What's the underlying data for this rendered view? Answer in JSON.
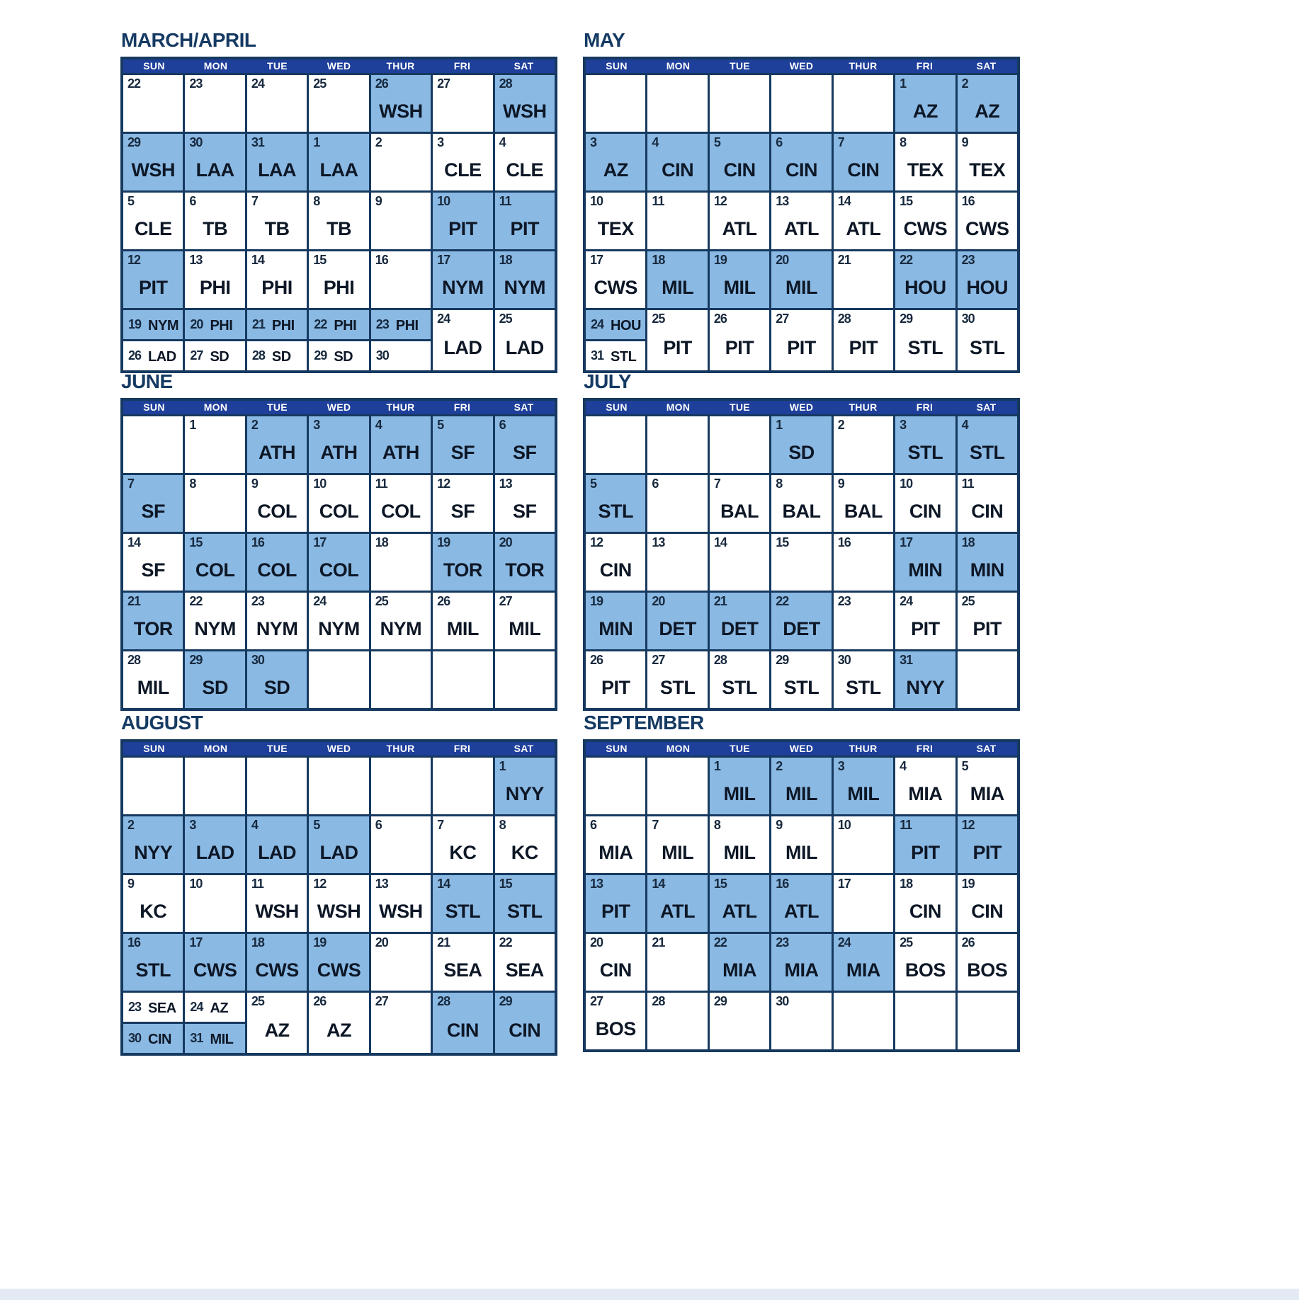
{
  "colors": {
    "header_bar": "#1e3f9a",
    "grid_border": "#16395f",
    "highlight": "#8ab9e3",
    "title_text": "#153a63",
    "day_text": "#17293e",
    "team_text": "#0d1726",
    "footer_strip": "#e4eaf3"
  },
  "weekdays": [
    "SUN",
    "MON",
    "TUE",
    "WED",
    "THUR",
    "FRI",
    "SAT"
  ],
  "months": [
    {
      "name": "MARCH/APRIL",
      "rows": [
        [
          {
            "d": "22"
          },
          {
            "d": "23"
          },
          {
            "d": "24"
          },
          {
            "d": "25"
          },
          {
            "d": "26",
            "t": "WSH",
            "hl": true
          },
          {
            "d": "27"
          },
          {
            "d": "28",
            "t": "WSH",
            "hl": true
          }
        ],
        [
          {
            "d": "29",
            "t": "WSH",
            "hl": true
          },
          {
            "d": "30",
            "t": "LAA",
            "hl": true
          },
          {
            "d": "31",
            "t": "LAA",
            "hl": true
          },
          {
            "d": "1",
            "t": "LAA",
            "hl": true
          },
          {
            "d": "2"
          },
          {
            "d": "3",
            "t": "CLE"
          },
          {
            "d": "4",
            "t": "CLE"
          }
        ],
        [
          {
            "d": "5",
            "t": "CLE"
          },
          {
            "d": "6",
            "t": "TB"
          },
          {
            "d": "7",
            "t": "TB"
          },
          {
            "d": "8",
            "t": "TB"
          },
          {
            "d": "9"
          },
          {
            "d": "10",
            "t": "PIT",
            "hl": true
          },
          {
            "d": "11",
            "t": "PIT",
            "hl": true
          }
        ],
        [
          {
            "d": "12",
            "t": "PIT",
            "hl": true
          },
          {
            "d": "13",
            "t": "PHI"
          },
          {
            "d": "14",
            "t": "PHI"
          },
          {
            "d": "15",
            "t": "PHI"
          },
          {
            "d": "16"
          },
          {
            "d": "17",
            "t": "NYM",
            "hl": true
          },
          {
            "d": "18",
            "t": "NYM",
            "hl": true
          }
        ],
        [
          {
            "split": [
              {
                "d": "19",
                "t": "NYM",
                "hl": true
              },
              {
                "d": "26",
                "t": "LAD"
              }
            ]
          },
          {
            "split": [
              {
                "d": "20",
                "t": "PHI",
                "hl": true
              },
              {
                "d": "27",
                "t": "SD"
              }
            ]
          },
          {
            "split": [
              {
                "d": "21",
                "t": "PHI",
                "hl": true
              },
              {
                "d": "28",
                "t": "SD"
              }
            ]
          },
          {
            "split": [
              {
                "d": "22",
                "t": "PHI",
                "hl": true
              },
              {
                "d": "29",
                "t": "SD"
              }
            ]
          },
          {
            "split": [
              {
                "d": "23",
                "t": "PHI",
                "hl": true
              },
              {
                "d": "30"
              }
            ]
          },
          {
            "d": "24",
            "t": "LAD"
          },
          {
            "d": "25",
            "t": "LAD"
          }
        ]
      ]
    },
    {
      "name": "MAY",
      "rows": [
        [
          {},
          {},
          {},
          {},
          {},
          {
            "d": "1",
            "t": "AZ",
            "hl": true
          },
          {
            "d": "2",
            "t": "AZ",
            "hl": true
          }
        ],
        [
          {
            "d": "3",
            "t": "AZ",
            "hl": true
          },
          {
            "d": "4",
            "t": "CIN",
            "hl": true
          },
          {
            "d": "5",
            "t": "CIN",
            "hl": true
          },
          {
            "d": "6",
            "t": "CIN",
            "hl": true
          },
          {
            "d": "7",
            "t": "CIN",
            "hl": true
          },
          {
            "d": "8",
            "t": "TEX"
          },
          {
            "d": "9",
            "t": "TEX"
          }
        ],
        [
          {
            "d": "10",
            "t": "TEX"
          },
          {
            "d": "11"
          },
          {
            "d": "12",
            "t": "ATL"
          },
          {
            "d": "13",
            "t": "ATL"
          },
          {
            "d": "14",
            "t": "ATL"
          },
          {
            "d": "15",
            "t": "CWS"
          },
          {
            "d": "16",
            "t": "CWS"
          }
        ],
        [
          {
            "d": "17",
            "t": "CWS"
          },
          {
            "d": "18",
            "t": "MIL",
            "hl": true
          },
          {
            "d": "19",
            "t": "MIL",
            "hl": true
          },
          {
            "d": "20",
            "t": "MIL",
            "hl": true
          },
          {
            "d": "21"
          },
          {
            "d": "22",
            "t": "HOU",
            "hl": true
          },
          {
            "d": "23",
            "t": "HOU",
            "hl": true
          }
        ],
        [
          {
            "split": [
              {
                "d": "24",
                "t": "HOU",
                "hl": true
              },
              {
                "d": "31",
                "t": "STL"
              }
            ]
          },
          {
            "d": "25",
            "t": "PIT"
          },
          {
            "d": "26",
            "t": "PIT"
          },
          {
            "d": "27",
            "t": "PIT"
          },
          {
            "d": "28",
            "t": "PIT"
          },
          {
            "d": "29",
            "t": "STL"
          },
          {
            "d": "30",
            "t": "STL"
          }
        ]
      ]
    },
    {
      "name": "JUNE",
      "rows": [
        [
          {},
          {
            "d": "1"
          },
          {
            "d": "2",
            "t": "ATH",
            "hl": true
          },
          {
            "d": "3",
            "t": "ATH",
            "hl": true
          },
          {
            "d": "4",
            "t": "ATH",
            "hl": true
          },
          {
            "d": "5",
            "t": "SF",
            "hl": true
          },
          {
            "d": "6",
            "t": "SF",
            "hl": true
          }
        ],
        [
          {
            "d": "7",
            "t": "SF",
            "hl": true
          },
          {
            "d": "8"
          },
          {
            "d": "9",
            "t": "COL"
          },
          {
            "d": "10",
            "t": "COL"
          },
          {
            "d": "11",
            "t": "COL"
          },
          {
            "d": "12",
            "t": "SF"
          },
          {
            "d": "13",
            "t": "SF"
          }
        ],
        [
          {
            "d": "14",
            "t": "SF"
          },
          {
            "d": "15",
            "t": "COL",
            "hl": true
          },
          {
            "d": "16",
            "t": "COL",
            "hl": true
          },
          {
            "d": "17",
            "t": "COL",
            "hl": true
          },
          {
            "d": "18"
          },
          {
            "d": "19",
            "t": "TOR",
            "hl": true
          },
          {
            "d": "20",
            "t": "TOR",
            "hl": true
          }
        ],
        [
          {
            "d": "21",
            "t": "TOR",
            "hl": true
          },
          {
            "d": "22",
            "t": "NYM"
          },
          {
            "d": "23",
            "t": "NYM"
          },
          {
            "d": "24",
            "t": "NYM"
          },
          {
            "d": "25",
            "t": "NYM"
          },
          {
            "d": "26",
            "t": "MIL"
          },
          {
            "d": "27",
            "t": "MIL"
          }
        ],
        [
          {
            "d": "28",
            "t": "MIL"
          },
          {
            "d": "29",
            "t": "SD",
            "hl": true
          },
          {
            "d": "30",
            "t": "SD",
            "hl": true
          },
          {},
          {},
          {},
          {}
        ]
      ]
    },
    {
      "name": "JULY",
      "rows": [
        [
          {},
          {},
          {},
          {
            "d": "1",
            "t": "SD",
            "hl": true
          },
          {
            "d": "2"
          },
          {
            "d": "3",
            "t": "STL",
            "hl": true
          },
          {
            "d": "4",
            "t": "STL",
            "hl": true
          }
        ],
        [
          {
            "d": "5",
            "t": "STL",
            "hl": true
          },
          {
            "d": "6"
          },
          {
            "d": "7",
            "t": "BAL"
          },
          {
            "d": "8",
            "t": "BAL"
          },
          {
            "d": "9",
            "t": "BAL"
          },
          {
            "d": "10",
            "t": "CIN"
          },
          {
            "d": "11",
            "t": "CIN"
          }
        ],
        [
          {
            "d": "12",
            "t": "CIN"
          },
          {
            "d": "13"
          },
          {
            "d": "14"
          },
          {
            "d": "15"
          },
          {
            "d": "16"
          },
          {
            "d": "17",
            "t": "MIN",
            "hl": true
          },
          {
            "d": "18",
            "t": "MIN",
            "hl": true
          }
        ],
        [
          {
            "d": "19",
            "t": "MIN",
            "hl": true
          },
          {
            "d": "20",
            "t": "DET",
            "hl": true
          },
          {
            "d": "21",
            "t": "DET",
            "hl": true
          },
          {
            "d": "22",
            "t": "DET",
            "hl": true
          },
          {
            "d": "23"
          },
          {
            "d": "24",
            "t": "PIT"
          },
          {
            "d": "25",
            "t": "PIT"
          }
        ],
        [
          {
            "d": "26",
            "t": "PIT"
          },
          {
            "d": "27",
            "t": "STL"
          },
          {
            "d": "28",
            "t": "STL"
          },
          {
            "d": "29",
            "t": "STL"
          },
          {
            "d": "30",
            "t": "STL"
          },
          {
            "d": "31",
            "t": "NYY",
            "hl": true
          },
          {}
        ]
      ]
    },
    {
      "name": "AUGUST",
      "rows": [
        [
          {},
          {},
          {},
          {},
          {},
          {},
          {
            "d": "1",
            "t": "NYY",
            "hl": true
          }
        ],
        [
          {
            "d": "2",
            "t": "NYY",
            "hl": true
          },
          {
            "d": "3",
            "t": "LAD",
            "hl": true
          },
          {
            "d": "4",
            "t": "LAD",
            "hl": true
          },
          {
            "d": "5",
            "t": "LAD",
            "hl": true
          },
          {
            "d": "6"
          },
          {
            "d": "7",
            "t": "KC"
          },
          {
            "d": "8",
            "t": "KC"
          }
        ],
        [
          {
            "d": "9",
            "t": "KC"
          },
          {
            "d": "10"
          },
          {
            "d": "11",
            "t": "WSH"
          },
          {
            "d": "12",
            "t": "WSH"
          },
          {
            "d": "13",
            "t": "WSH"
          },
          {
            "d": "14",
            "t": "STL",
            "hl": true
          },
          {
            "d": "15",
            "t": "STL",
            "hl": true
          }
        ],
        [
          {
            "d": "16",
            "t": "STL",
            "hl": true
          },
          {
            "d": "17",
            "t": "CWS",
            "hl": true
          },
          {
            "d": "18",
            "t": "CWS",
            "hl": true
          },
          {
            "d": "19",
            "t": "CWS",
            "hl": true
          },
          {
            "d": "20"
          },
          {
            "d": "21",
            "t": "SEA"
          },
          {
            "d": "22",
            "t": "SEA"
          }
        ],
        [
          {
            "split": [
              {
                "d": "23",
                "t": "SEA"
              },
              {
                "d": "30",
                "t": "CIN",
                "hl": true
              }
            ]
          },
          {
            "split": [
              {
                "d": "24",
                "t": "AZ"
              },
              {
                "d": "31",
                "t": "MIL",
                "hl": true
              }
            ]
          },
          {
            "d": "25",
            "t": "AZ"
          },
          {
            "d": "26",
            "t": "AZ"
          },
          {
            "d": "27"
          },
          {
            "d": "28",
            "t": "CIN",
            "hl": true
          },
          {
            "d": "29",
            "t": "CIN",
            "hl": true
          }
        ]
      ]
    },
    {
      "name": "SEPTEMBER",
      "rows": [
        [
          {},
          {},
          {
            "d": "1",
            "t": "MIL",
            "hl": true
          },
          {
            "d": "2",
            "t": "MIL",
            "hl": true
          },
          {
            "d": "3",
            "t": "MIL",
            "hl": true
          },
          {
            "d": "4",
            "t": "MIA"
          },
          {
            "d": "5",
            "t": "MIA"
          }
        ],
        [
          {
            "d": "6",
            "t": "MIA"
          },
          {
            "d": "7",
            "t": "MIL"
          },
          {
            "d": "8",
            "t": "MIL"
          },
          {
            "d": "9",
            "t": "MIL"
          },
          {
            "d": "10"
          },
          {
            "d": "11",
            "t": "PIT",
            "hl": true
          },
          {
            "d": "12",
            "t": "PIT",
            "hl": true
          }
        ],
        [
          {
            "d": "13",
            "t": "PIT",
            "hl": true
          },
          {
            "d": "14",
            "t": "ATL",
            "hl": true
          },
          {
            "d": "15",
            "t": "ATL",
            "hl": true
          },
          {
            "d": "16",
            "t": "ATL",
            "hl": true
          },
          {
            "d": "17"
          },
          {
            "d": "18",
            "t": "CIN"
          },
          {
            "d": "19",
            "t": "CIN"
          }
        ],
        [
          {
            "d": "20",
            "t": "CIN"
          },
          {
            "d": "21"
          },
          {
            "d": "22",
            "t": "MIA",
            "hl": true
          },
          {
            "d": "23",
            "t": "MIA",
            "hl": true
          },
          {
            "d": "24",
            "t": "MIA",
            "hl": true
          },
          {
            "d": "25",
            "t": "BOS"
          },
          {
            "d": "26",
            "t": "BOS"
          }
        ],
        [
          {
            "d": "27",
            "t": "BOS"
          },
          {
            "d": "28"
          },
          {
            "d": "29"
          },
          {
            "d": "30"
          },
          {},
          {},
          {}
        ]
      ]
    }
  ]
}
